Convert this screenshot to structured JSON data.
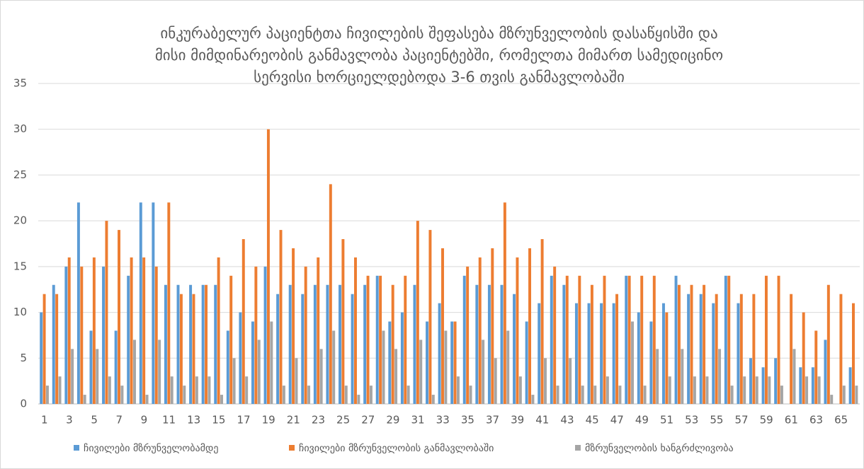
{
  "chart_data": {
    "type": "bar",
    "title": [
      "ინკურაბელურ პაციენტთა ჩივილების შეფასება მზრუნველობის დასაწყისში და",
      "მისი მიმდინარეობის განმავლობა პაციენტებში, რომელთა მიმართ სამედიცინო",
      "სერვისი ხორციელდებოდა  3-6 თვის განმავლობაში"
    ],
    "categories": [
      "1",
      null,
      "3",
      null,
      "5",
      null,
      "7",
      null,
      "9",
      null,
      "11",
      null,
      "13",
      null,
      "15",
      null,
      "17",
      null,
      "19",
      null,
      "21",
      null,
      "23",
      null,
      "25",
      null,
      "27",
      null,
      "29",
      null,
      "31",
      null,
      "33",
      null,
      "35",
      null,
      "37",
      null,
      "39",
      null,
      "41",
      null,
      "43",
      null,
      "45",
      null,
      "47",
      null,
      "49",
      null,
      "51",
      null,
      "53",
      null,
      "55",
      null,
      "57",
      null,
      "59",
      null,
      "61",
      null,
      "63",
      null,
      "65",
      null
    ],
    "series": [
      {
        "name": "ჩივილები მზრუნველობამდე",
        "color": "#5b9bd5",
        "values": [
          10,
          13,
          15,
          22,
          8,
          15,
          8,
          14,
          22,
          22,
          13,
          13,
          13,
          13,
          13,
          8,
          10,
          9,
          15,
          12,
          13,
          12,
          13,
          13,
          13,
          12,
          13,
          14,
          9,
          10,
          13,
          9,
          11,
          9,
          14,
          13,
          13,
          13,
          12,
          9,
          11,
          14,
          13,
          11,
          11,
          11,
          11,
          14,
          10,
          9,
          11,
          14,
          12,
          12,
          11,
          14,
          11,
          5,
          4,
          5,
          0,
          4,
          4,
          7,
          0,
          4
        ]
      },
      {
        "name": "ჩივილები მზრუნველობის განმავლობაში",
        "color": "#ed7d31",
        "values": [
          12,
          12,
          16,
          15,
          16,
          20,
          19,
          16,
          16,
          15,
          22,
          12,
          12,
          13,
          16,
          14,
          18,
          15,
          30,
          19,
          17,
          15,
          16,
          24,
          18,
          16,
          14,
          14,
          13,
          14,
          20,
          19,
          17,
          9,
          15,
          16,
          17,
          22,
          16,
          17,
          18,
          15,
          14,
          14,
          13,
          14,
          12,
          14,
          14,
          14,
          10,
          13,
          13,
          13,
          12,
          14,
          12,
          12,
          14,
          14,
          12,
          10,
          8,
          13,
          12,
          11
        ]
      },
      {
        "name": "მზრუნველობის ხანგრძლივობა",
        "color": "#a5a5a5",
        "values": [
          2,
          3,
          6,
          1,
          6,
          3,
          2,
          7,
          1,
          7,
          3,
          2,
          3,
          3,
          1,
          5,
          3,
          7,
          9,
          2,
          5,
          2,
          6,
          8,
          2,
          1,
          2,
          8,
          6,
          2,
          7,
          1,
          8,
          3,
          2,
          7,
          5,
          8,
          3,
          1,
          5,
          2,
          5,
          2,
          2,
          3,
          2,
          9,
          2,
          6,
          3,
          6,
          3,
          3,
          6,
          2,
          3,
          3,
          3,
          2,
          6,
          3,
          3,
          1,
          2,
          2
        ]
      }
    ],
    "ylim": [
      0,
      35
    ],
    "yticks": [
      0,
      5,
      10,
      15,
      20,
      25,
      30,
      35
    ],
    "grid": true,
    "legend": "bottom"
  }
}
